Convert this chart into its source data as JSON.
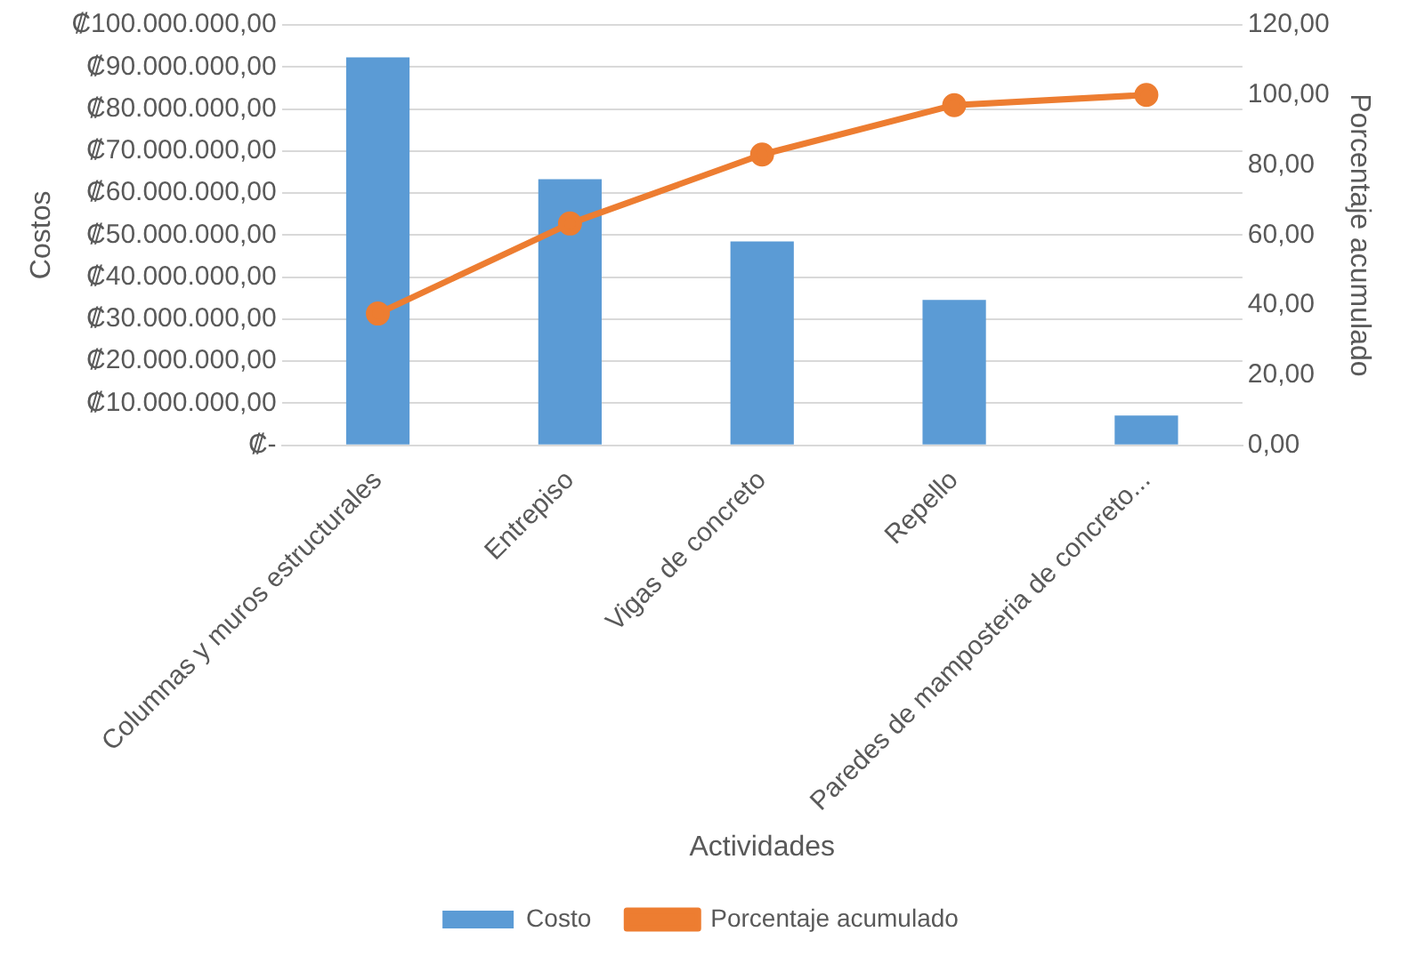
{
  "chart_data": {
    "type": "bar",
    "xlabel": "Actividades",
    "ylabel": "Costos",
    "y2label": "Porcentaje acumulado",
    "categories": [
      "Columnas y muros estructurales",
      "Entrepiso",
      "Vigas de concreto",
      "Repello",
      "Paredes de mamposteria de concreto..."
    ],
    "series": [
      {
        "name": "Costo",
        "color": "#5b9bd5",
        "values": [
          92300000,
          63300000,
          48500000,
          34600000,
          7100000
        ]
      },
      {
        "name": "Porcentaje acumulado",
        "type": "line",
        "axis": "y2",
        "color": "#ed7d31",
        "values": [
          37.6,
          63.3,
          83.0,
          97.1,
          100
        ]
      }
    ],
    "ylim": [
      0,
      100000000
    ],
    "yticks": [
      {
        "value": 0,
        "label": "₡-"
      },
      {
        "value": 10000000,
        "label": "₡10.000.000,00"
      },
      {
        "value": 20000000,
        "label": "₡20.000.000,00"
      },
      {
        "value": 30000000,
        "label": "₡30.000.000,00"
      },
      {
        "value": 40000000,
        "label": "₡40.000.000,00"
      },
      {
        "value": 50000000,
        "label": "₡50.000.000,00"
      },
      {
        "value": 60000000,
        "label": "₡60.000.000,00"
      },
      {
        "value": 70000000,
        "label": "₡70.000.000,00"
      },
      {
        "value": 80000000,
        "label": "₡80.000.000,00"
      },
      {
        "value": 90000000,
        "label": "₡90.000.000,00"
      },
      {
        "value": 100000000,
        "label": "₡100.000.000,00"
      }
    ],
    "y2lim": [
      0,
      120
    ],
    "y2ticks": [
      {
        "value": 0,
        "label": "0,00"
      },
      {
        "value": 20,
        "label": "20,00"
      },
      {
        "value": 40,
        "label": "40,00"
      },
      {
        "value": 60,
        "label": "60,00"
      },
      {
        "value": 80,
        "label": "80,00"
      },
      {
        "value": 100,
        "label": "100,00"
      },
      {
        "value": 120,
        "label": "120,00"
      }
    ],
    "grid": "y",
    "legend": "bottom",
    "marker": "circle",
    "line_style": "solid"
  }
}
